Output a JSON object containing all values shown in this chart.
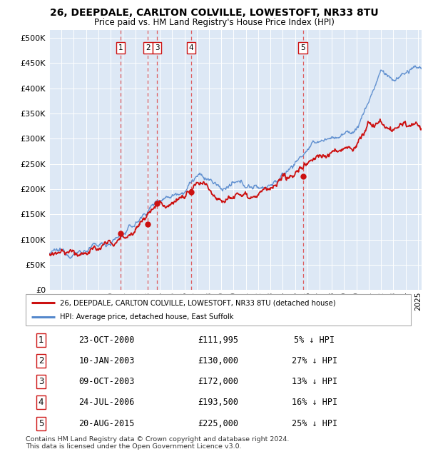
{
  "title": "26, DEEPDALE, CARLTON COLVILLE, LOWESTOFT, NR33 8TU",
  "subtitle": "Price paid vs. HM Land Registry's House Price Index (HPI)",
  "ylabel_ticks": [
    "£0",
    "£50K",
    "£100K",
    "£150K",
    "£200K",
    "£250K",
    "£300K",
    "£350K",
    "£400K",
    "£450K",
    "£500K"
  ],
  "ytick_values": [
    0,
    50000,
    100000,
    150000,
    200000,
    250000,
    300000,
    350000,
    400000,
    450000,
    500000
  ],
  "ylim": [
    0,
    515000
  ],
  "xlim_start": 1995.0,
  "xlim_end": 2025.3,
  "hpi_color": "#5588cc",
  "hpi_fill_color": "#c8d8f0",
  "price_color": "#cc1111",
  "sale_marker_color": "#cc1111",
  "vline_color": "#dd4444",
  "background_color": "#dde8f5",
  "sale_dates_x": [
    2000.81,
    2003.03,
    2003.77,
    2006.56,
    2015.64
  ],
  "sale_prices_y": [
    111995,
    130000,
    172000,
    193500,
    225000
  ],
  "sale_labels": [
    "1",
    "2",
    "3",
    "4",
    "5"
  ],
  "legend_label_price": "26, DEEPDALE, CARLTON COLVILLE, LOWESTOFT, NR33 8TU (detached house)",
  "legend_label_hpi": "HPI: Average price, detached house, East Suffolk",
  "table_rows": [
    [
      "1",
      "23-OCT-2000",
      "£111,995",
      "5% ↓ HPI"
    ],
    [
      "2",
      "10-JAN-2003",
      "£130,000",
      "27% ↓ HPI"
    ],
    [
      "3",
      "09-OCT-2003",
      "£172,000",
      "13% ↓ HPI"
    ],
    [
      "4",
      "24-JUL-2006",
      "£193,500",
      "16% ↓ HPI"
    ],
    [
      "5",
      "20-AUG-2015",
      "£225,000",
      "25% ↓ HPI"
    ]
  ],
  "footer": "Contains HM Land Registry data © Crown copyright and database right 2024.\nThis data is licensed under the Open Government Licence v3.0.",
  "xtick_years": [
    1995,
    1996,
    1997,
    1998,
    1999,
    2000,
    2001,
    2002,
    2003,
    2004,
    2005,
    2006,
    2007,
    2008,
    2009,
    2010,
    2011,
    2012,
    2013,
    2014,
    2015,
    2016,
    2017,
    2018,
    2019,
    2020,
    2021,
    2022,
    2023,
    2024,
    2025
  ],
  "hpi_anchors_x": [
    1995,
    1996,
    1997,
    1998,
    1999,
    2000,
    2001,
    2002,
    2003,
    2004,
    2005,
    2006,
    2007,
    2008,
    2009,
    2010,
    2011,
    2012,
    2013,
    2014,
    2015,
    2016,
    2017,
    2018,
    2019,
    2020,
    2021,
    2022,
    2023,
    2024,
    2025.3
  ],
  "hpi_anchors_y": [
    73000,
    75000,
    74000,
    80000,
    87000,
    96000,
    110000,
    130000,
    158000,
    182000,
    190000,
    200000,
    225000,
    218000,
    200000,
    208000,
    207000,
    203000,
    210000,
    225000,
    252000,
    278000,
    295000,
    302000,
    308000,
    318000,
    375000,
    435000,
    415000,
    430000,
    440000
  ],
  "price_anchors_x": [
    1995,
    1996,
    1997,
    1998,
    1999,
    2000,
    2001,
    2002,
    2003,
    2004,
    2005,
    2006,
    2007,
    2008,
    2009,
    2010,
    2011,
    2012,
    2013,
    2014,
    2015,
    2016,
    2017,
    2018,
    2019,
    2020,
    2021,
    2022,
    2023,
    2024,
    2025.3
  ],
  "price_anchors_y": [
    70000,
    72000,
    71000,
    76000,
    83000,
    91000,
    105000,
    123000,
    148000,
    172000,
    178000,
    188000,
    207000,
    200000,
    185000,
    192000,
    193000,
    190000,
    197000,
    210000,
    232000,
    253000,
    268000,
    272000,
    278000,
    285000,
    330000,
    330000,
    315000,
    325000,
    320000
  ]
}
